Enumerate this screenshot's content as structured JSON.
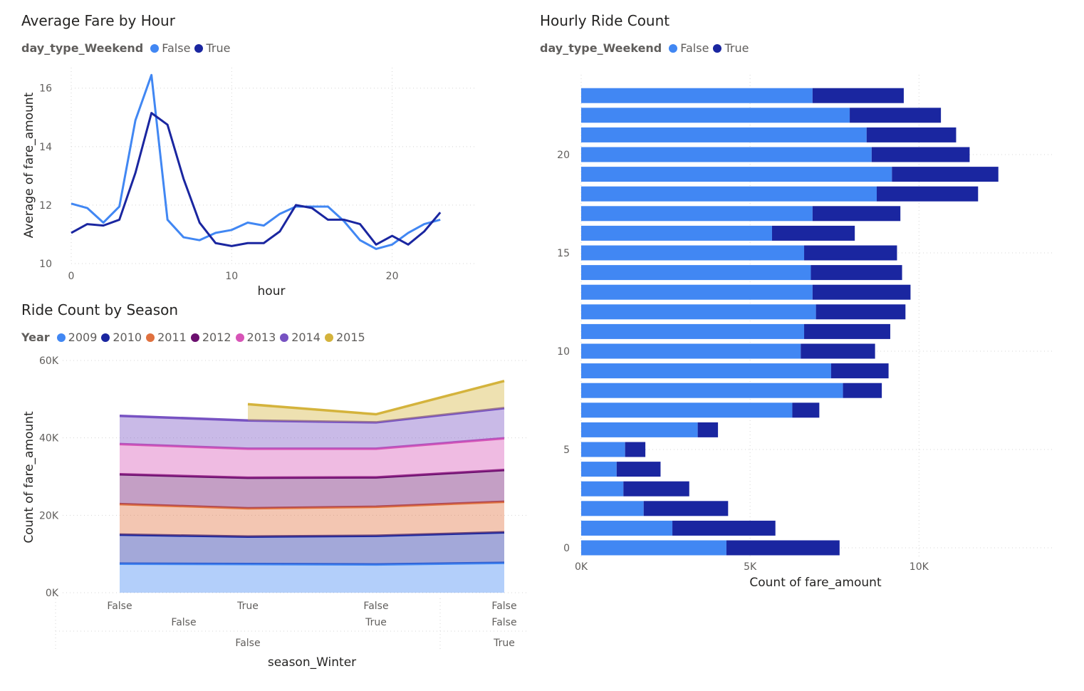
{
  "charts": {
    "fare_by_hour": {
      "title": "Average Fare by Hour",
      "legend_title": "day_type_Weekend",
      "series_labels": [
        "False",
        "True"
      ]
    },
    "ride_count": {
      "title": "Hourly Ride Count",
      "legend_title": "day_type_Weekend",
      "series_labels": [
        "False",
        "True"
      ]
    },
    "season": {
      "title": "Ride Count by Season",
      "legend_title": "Year",
      "series_labels": [
        "2009",
        "2010",
        "2011",
        "2012",
        "2013",
        "2014",
        "2015"
      ]
    }
  },
  "colors": {
    "false": "#4187f3",
    "true": "#1a26a0",
    "y2009": "#4187f3",
    "y2010": "#1a26a0",
    "y2011": "#e0713f",
    "y2012": "#6b0f6e",
    "y2013": "#d754b7",
    "y2014": "#7752c2",
    "y2015": "#d4b33c"
  },
  "chart_data": [
    {
      "type": "line",
      "title": "Average Fare by Hour",
      "xlabel": "hour",
      "ylabel": "Average of fare_amount",
      "legend_title": "day_type_Weekend",
      "x": [
        0,
        1,
        2,
        3,
        4,
        5,
        6,
        7,
        8,
        9,
        10,
        11,
        12,
        13,
        14,
        15,
        16,
        17,
        18,
        19,
        20,
        21,
        22,
        23
      ],
      "xticks": [
        "0",
        "10",
        "20"
      ],
      "yticks": [
        "10",
        "12",
        "14",
        "16"
      ],
      "ylim": [
        10,
        16.7
      ],
      "series": [
        {
          "name": "False",
          "values": [
            12.05,
            11.9,
            11.4,
            11.95,
            14.9,
            16.45,
            11.5,
            10.9,
            10.8,
            11.05,
            11.15,
            11.4,
            11.3,
            11.7,
            11.95,
            11.95,
            11.95,
            11.45,
            10.8,
            10.5,
            10.65,
            11.05,
            11.35,
            11.5
          ]
        },
        {
          "name": "True",
          "values": [
            11.05,
            11.35,
            11.3,
            11.5,
            13.1,
            15.15,
            14.75,
            12.9,
            11.4,
            10.7,
            10.6,
            10.7,
            10.7,
            11.1,
            12.0,
            11.9,
            11.5,
            11.5,
            11.35,
            10.65,
            10.95,
            10.65,
            11.1,
            11.75
          ]
        }
      ],
      "grid": true,
      "legend_position": "top-left"
    },
    {
      "type": "bar",
      "orientation": "horizontal",
      "stacked": true,
      "title": "Hourly Ride Count",
      "xlabel": "Count of fare_amount",
      "ylabel": "",
      "legend_title": "day_type_Weekend",
      "categories": [
        0,
        1,
        2,
        3,
        4,
        5,
        6,
        7,
        8,
        9,
        10,
        11,
        12,
        13,
        14,
        15,
        16,
        17,
        18,
        19,
        20,
        21,
        22,
        23
      ],
      "xticks": [
        "0K",
        "5K",
        "10K"
      ],
      "yticks": [
        "0",
        "5",
        "10",
        "15",
        "20"
      ],
      "xlim": [
        0,
        14000
      ],
      "series": [
        {
          "name": "False",
          "values": [
            4300,
            2700,
            1850,
            1250,
            1050,
            1300,
            3450,
            6250,
            7750,
            7400,
            6500,
            6600,
            6950,
            6850,
            6800,
            6600,
            5650,
            6850,
            8750,
            9200,
            8600,
            8450,
            7950,
            6850
          ]
        },
        {
          "name": "True",
          "values": [
            3350,
            3050,
            2500,
            1950,
            1300,
            600,
            600,
            800,
            1150,
            1700,
            2200,
            2550,
            2650,
            2900,
            2700,
            2750,
            2450,
            2600,
            3000,
            3150,
            2900,
            2650,
            2700,
            2700
          ]
        }
      ],
      "grid": true,
      "legend_position": "top-left"
    },
    {
      "type": "area",
      "stacked": true,
      "title": "Ride Count by Season",
      "xlabel": "season_Winter",
      "ylabel": "Count of fare_amount",
      "legend_title": "Year",
      "categories": [
        [
          "False",
          "False",
          "False"
        ],
        [
          "True",
          "False",
          "False"
        ],
        [
          "False",
          "True",
          "False"
        ],
        [
          "False",
          "False",
          "True"
        ]
      ],
      "category_levels": {
        "level1": [
          "False",
          "True",
          "False",
          "False"
        ],
        "level2": [
          "False",
          "True",
          "False"
        ],
        "level3": [
          "False",
          "True"
        ]
      },
      "yticks": [
        "0K",
        "20K",
        "40K",
        "60K"
      ],
      "ylim": [
        0,
        60000
      ],
      "series": [
        {
          "name": "2009",
          "values": [
            7500,
            7400,
            7300,
            7700
          ]
        },
        {
          "name": "2010",
          "values": [
            7500,
            7100,
            7400,
            7900
          ]
        },
        {
          "name": "2011",
          "values": [
            7900,
            7300,
            7500,
            7900
          ]
        },
        {
          "name": "2012",
          "values": [
            7700,
            7900,
            7600,
            8200
          ]
        },
        {
          "name": "2013",
          "values": [
            7800,
            7500,
            7400,
            8200
          ]
        },
        {
          "name": "2014",
          "values": [
            7300,
            7300,
            6800,
            7800
          ]
        },
        {
          "name": "2015",
          "values": [
            null,
            4200,
            2100,
            7000
          ]
        }
      ],
      "grid": true,
      "legend_position": "top-left"
    }
  ]
}
